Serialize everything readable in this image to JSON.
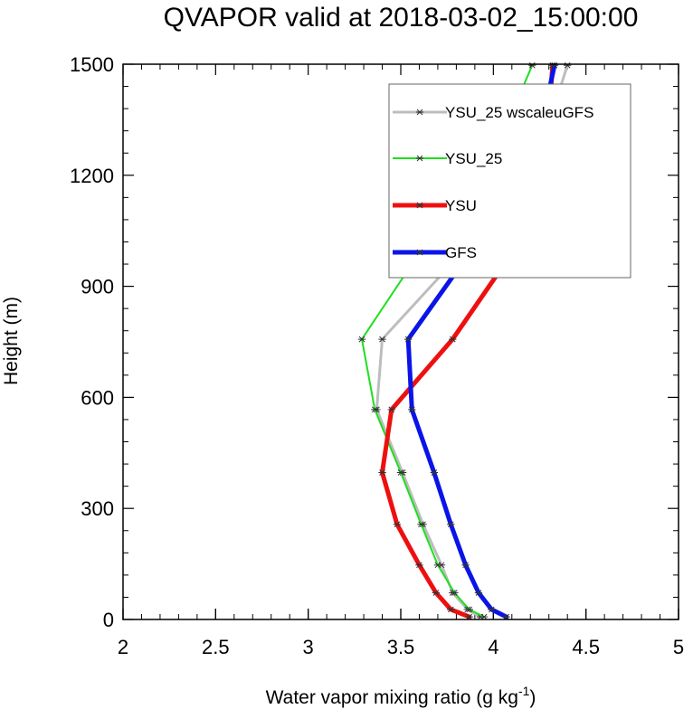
{
  "chart_data": {
    "type": "line",
    "title": "QVAPOR valid at 2018-03-02_15:00:00",
    "xlabel": "Water vapor mixing ratio (g kg",
    "xlabel_sup": "-1",
    "xlabel_close": ")",
    "ylabel": "Height (m)",
    "xlim": [
      2,
      5
    ],
    "ylim": [
      0,
      1500
    ],
    "xticks": [
      "2",
      "2.5",
      "3",
      "3.5",
      "4",
      "4.5",
      "5"
    ],
    "yticks": [
      "0",
      "300",
      "600",
      "900",
      "1200",
      "1500"
    ],
    "grid": false,
    "legend_position": "top-right",
    "series": [
      {
        "name": "YSU_25 wscaleuGFS",
        "color": "#bdbdbd",
        "width": 3,
        "points": [
          [
            3.93,
            7
          ],
          [
            3.86,
            27
          ],
          [
            3.78,
            72
          ],
          [
            3.72,
            147
          ],
          [
            3.62,
            257
          ],
          [
            3.51,
            397
          ],
          [
            3.37,
            567
          ],
          [
            3.4,
            757
          ],
          [
            3.8,
            975
          ],
          [
            4.22,
            1217
          ],
          [
            4.4,
            1497
          ]
        ]
      },
      {
        "name": "YSU_25",
        "color": "#1ee01e",
        "width": 2,
        "points": [
          [
            3.95,
            7
          ],
          [
            3.87,
            27
          ],
          [
            3.79,
            72
          ],
          [
            3.7,
            147
          ],
          [
            3.61,
            257
          ],
          [
            3.5,
            397
          ],
          [
            3.36,
            567
          ],
          [
            3.29,
            757
          ],
          [
            3.58,
            975
          ],
          [
            3.97,
            1217
          ],
          [
            4.21,
            1497
          ]
        ]
      },
      {
        "name": "YSU",
        "color": "#ee1010",
        "width": 5,
        "points": [
          [
            3.87,
            7
          ],
          [
            3.77,
            27
          ],
          [
            3.69,
            72
          ],
          [
            3.6,
            147
          ],
          [
            3.48,
            257
          ],
          [
            3.4,
            397
          ],
          [
            3.45,
            567
          ],
          [
            3.78,
            757
          ],
          [
            4.08,
            975
          ],
          [
            4.28,
            1217
          ],
          [
            4.32,
            1497
          ]
        ]
      },
      {
        "name": "GFS",
        "color": "#0a14e8",
        "width": 5,
        "points": [
          [
            4.07,
            7
          ],
          [
            3.99,
            27
          ],
          [
            3.92,
            72
          ],
          [
            3.85,
            147
          ],
          [
            3.77,
            257
          ],
          [
            3.68,
            397
          ],
          [
            3.56,
            567
          ],
          [
            3.54,
            757
          ],
          [
            3.85,
            975
          ],
          [
            4.21,
            1217
          ],
          [
            4.33,
            1497
          ]
        ]
      }
    ]
  }
}
